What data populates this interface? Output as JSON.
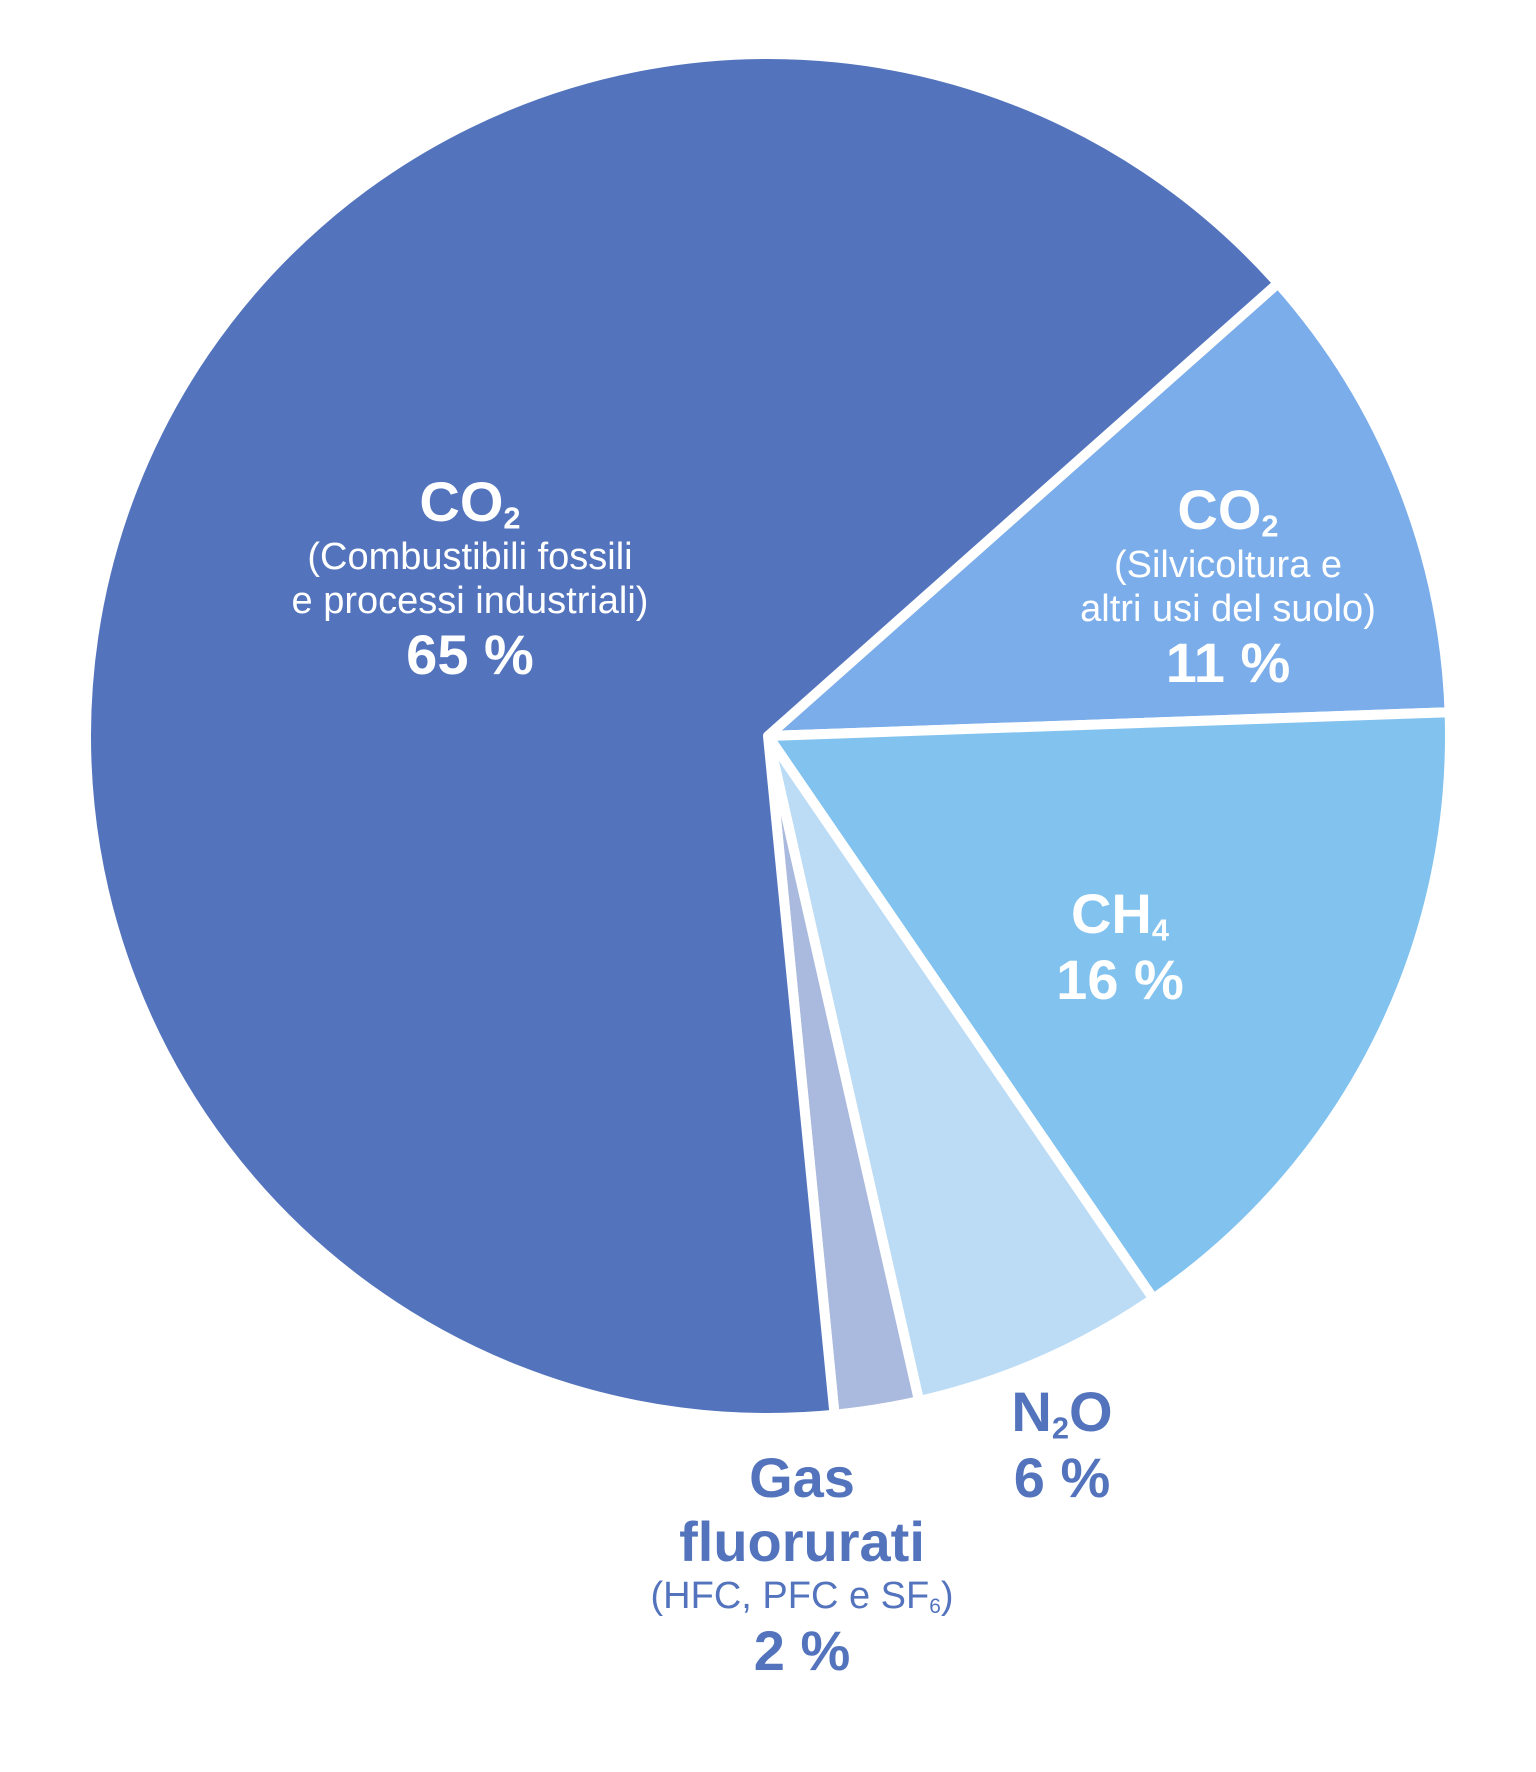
{
  "chart_data": {
    "type": "pie",
    "slices": [
      {
        "formula": "CO",
        "sub": "2",
        "desc1": "(Combustibili fossili",
        "desc2": "e processi industriali)",
        "value": 65,
        "label": "65 %",
        "color": "#5374bd"
      },
      {
        "formula": "CO",
        "sub": "2",
        "desc1": "(Silvicoltura e",
        "desc2": "altri usi del suolo)",
        "value": 11,
        "label": "11 %",
        "color": "#7aadea"
      },
      {
        "formula": "CH",
        "sub": "4",
        "value": 16,
        "label": "16 %",
        "color": "#82c2ef"
      },
      {
        "formula": "N",
        "sub": "2",
        "formula_tail": "O",
        "value": 6,
        "label": "6 %",
        "color": "#bcdcf6"
      },
      {
        "name1": "Gas",
        "name2": "fluorurati",
        "desc_pre": "(HFC, PFC e  SF",
        "desc_sub": "6",
        "desc_post": ")",
        "value": 2,
        "label": "2 %",
        "color": "#aab9de"
      }
    ]
  }
}
